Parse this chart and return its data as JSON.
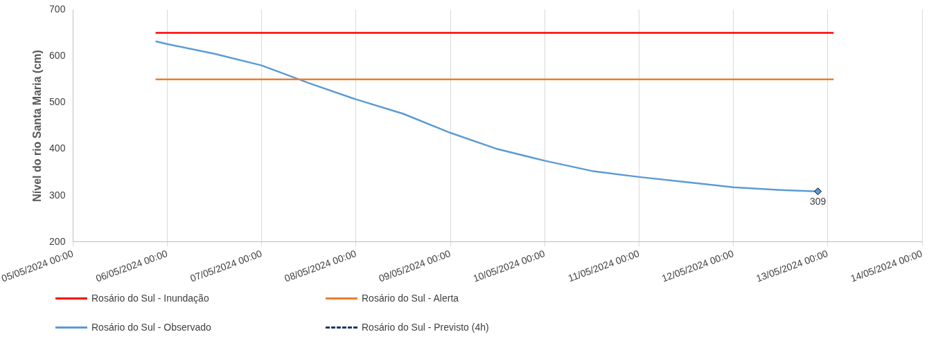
{
  "chart_data": {
    "type": "line",
    "ylabel": "Nível do rio Santa Maria (cm)",
    "xlim": [
      "2024-05-05T00:00",
      "2024-05-14T00:00"
    ],
    "xticks": [
      {
        "value": "2024-05-05T00:00",
        "label": "05/05/2024 00:00"
      },
      {
        "value": "2024-05-06T00:00",
        "label": "06/05/2024 00:00"
      },
      {
        "value": "2024-05-07T00:00",
        "label": "07/05/2024 00:00"
      },
      {
        "value": "2024-05-08T00:00",
        "label": "08/05/2024 00:00"
      },
      {
        "value": "2024-05-09T00:00",
        "label": "09/05/2024 00:00"
      },
      {
        "value": "2024-05-10T00:00",
        "label": "10/05/2024 00:00"
      },
      {
        "value": "2024-05-11T00:00",
        "label": "11/05/2024 00:00"
      },
      {
        "value": "2024-05-12T00:00",
        "label": "12/05/2024 00:00"
      },
      {
        "value": "2024-05-13T00:00",
        "label": "13/05/2024 00:00"
      },
      {
        "value": "2024-05-14T00:00",
        "label": "14/05/2024 00:00"
      }
    ],
    "ylim": [
      200,
      700
    ],
    "yticks": [
      200,
      300,
      400,
      500,
      600,
      700
    ],
    "grid": "x",
    "legend": "bottom",
    "marker": "none",
    "series": [
      {
        "name": "Rosário do Sul - Inundação",
        "color": "#ff0000",
        "line_style": "solid",
        "x": [
          "2024-05-05T21:00",
          "2024-05-13T01:30"
        ],
        "values": [
          650,
          650
        ]
      },
      {
        "name": "Rosário do Sul - Alerta",
        "color": "#ed7d31",
        "line_style": "solid",
        "x": [
          "2024-05-05T21:00",
          "2024-05-13T01:30"
        ],
        "values": [
          550,
          550
        ]
      },
      {
        "name": "Rosário do Sul - Observado",
        "color": "#5b9bd5",
        "line_style": "solid",
        "x": [
          "2024-05-05T21:00",
          "2024-05-06T00:00",
          "2024-05-06T12:00",
          "2024-05-07T00:00",
          "2024-05-07T12:00",
          "2024-05-08T00:00",
          "2024-05-08T12:00",
          "2024-05-09T00:00",
          "2024-05-09T12:00",
          "2024-05-10T00:00",
          "2024-05-10T12:00",
          "2024-05-11T00:00",
          "2024-05-11T12:00",
          "2024-05-12T00:00",
          "2024-05-12T12:00",
          "2024-05-12T21:30"
        ],
        "values": [
          632,
          626,
          605,
          580,
          542,
          507,
          476,
          435,
          400,
          375,
          353,
          340,
          329,
          318,
          312,
          309
        ]
      },
      {
        "name": "Rosário do Sul - Previsto (4h)",
        "color": "#1f3864",
        "line_style": "dashed"
      }
    ],
    "annotations": [
      {
        "text": "309",
        "x": "2024-05-12T21:30",
        "y": 309
      }
    ]
  }
}
